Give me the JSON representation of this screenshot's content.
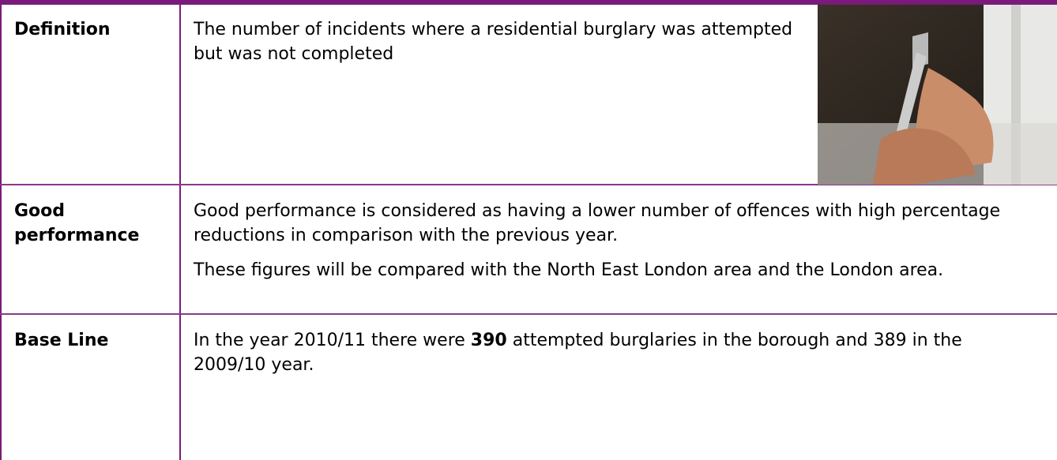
{
  "rows": [
    {
      "label": "Definition",
      "paragraphs": [
        "The number of incidents where a residential burglary was attempted but was not completed"
      ]
    },
    {
      "label": "Good performance",
      "paragraphs": [
        "Good performance is considered as having a lower number of offences with high percentage reductions in comparison with the previous year.",
        "These figures will be compared with the North East London area and the London area."
      ]
    },
    {
      "label": "Base Line",
      "before": "In the year 2010/11 there were ",
      "bold": "390",
      "after": " attempted burglaries in the borough and 389 in the 2009/10 year."
    }
  ]
}
